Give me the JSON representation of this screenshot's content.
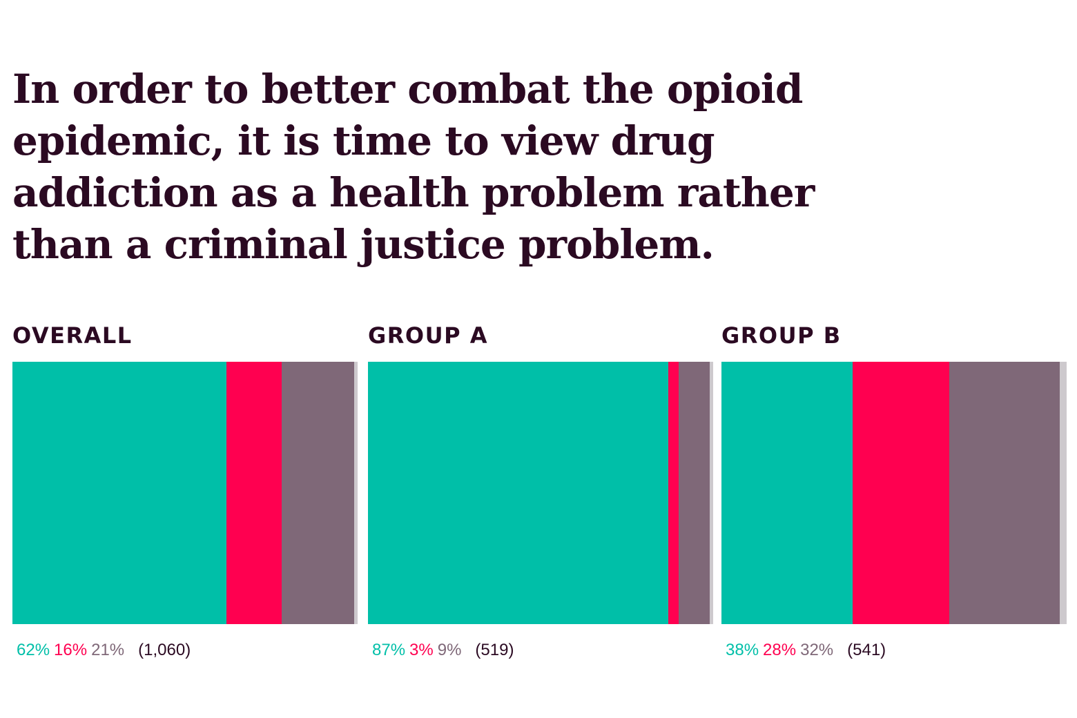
{
  "chart_data": {
    "type": "bar",
    "title": "In order to better combat the opioid epidemic, it is time to view drug addiction as a health problem rather than a criminal justice problem.",
    "colors": [
      "#00bfa8",
      "#ff0050",
      "#7f6878",
      "#cdc9cd"
    ],
    "panels": [
      {
        "name": "OVERALL",
        "values": [
          62,
          16,
          21
        ],
        "value_labels": [
          "62%",
          "16%",
          "21%"
        ],
        "n": "(1,060)"
      },
      {
        "name": "GROUP A",
        "values": [
          87,
          3,
          9
        ],
        "value_labels": [
          "87%",
          "3%",
          "9%"
        ],
        "n": "(519)"
      },
      {
        "name": "GROUP B",
        "values": [
          38,
          28,
          32
        ],
        "value_labels": [
          "38%",
          "28%",
          "32%"
        ],
        "n": "(541)"
      }
    ]
  }
}
